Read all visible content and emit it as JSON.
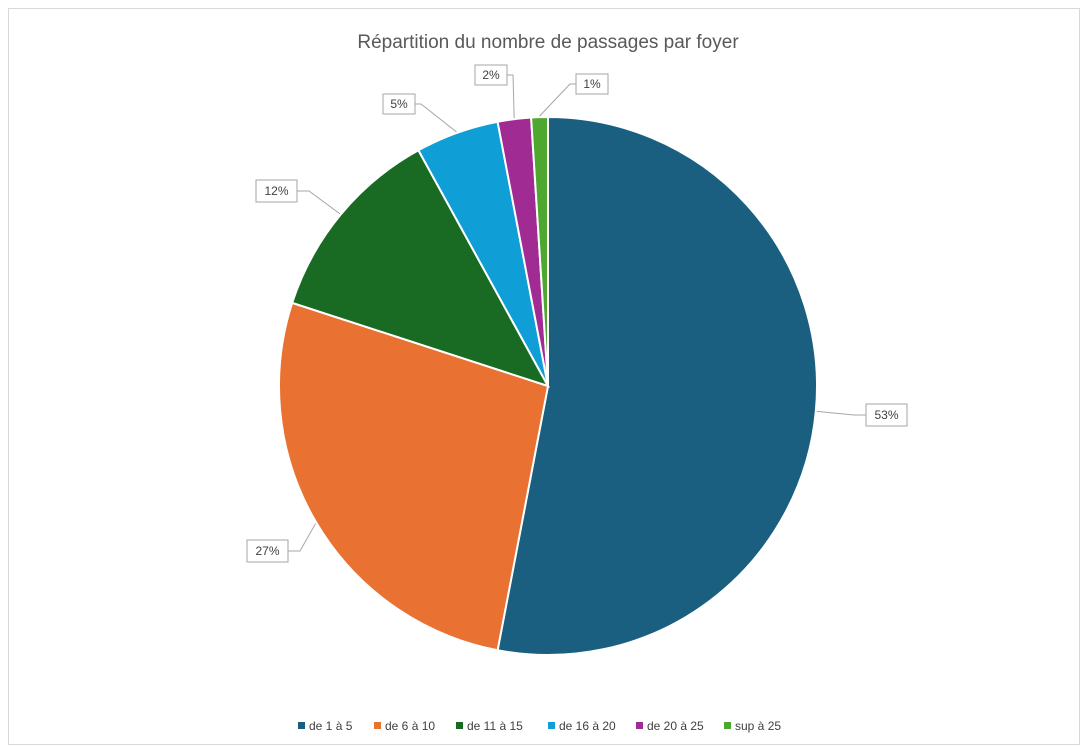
{
  "chart_data": {
    "type": "pie",
    "title": "Répartition du nombre de passages par foyer",
    "categories": [
      "de 1 à 5",
      "de 6 à 10",
      "de 11 à 15",
      "de 16 à 20",
      "de 20 à 25",
      "sup à 25"
    ],
    "values": [
      53,
      27,
      12,
      5,
      2,
      1
    ],
    "data_labels": [
      "53%",
      "27%",
      "12%",
      "5%",
      "2%",
      "1%"
    ],
    "colors": [
      "#1a5f80",
      "#e97132",
      "#196b24",
      "#0f9ed5",
      "#a02b93",
      "#4ea72e"
    ],
    "legend_position": "bottom"
  }
}
